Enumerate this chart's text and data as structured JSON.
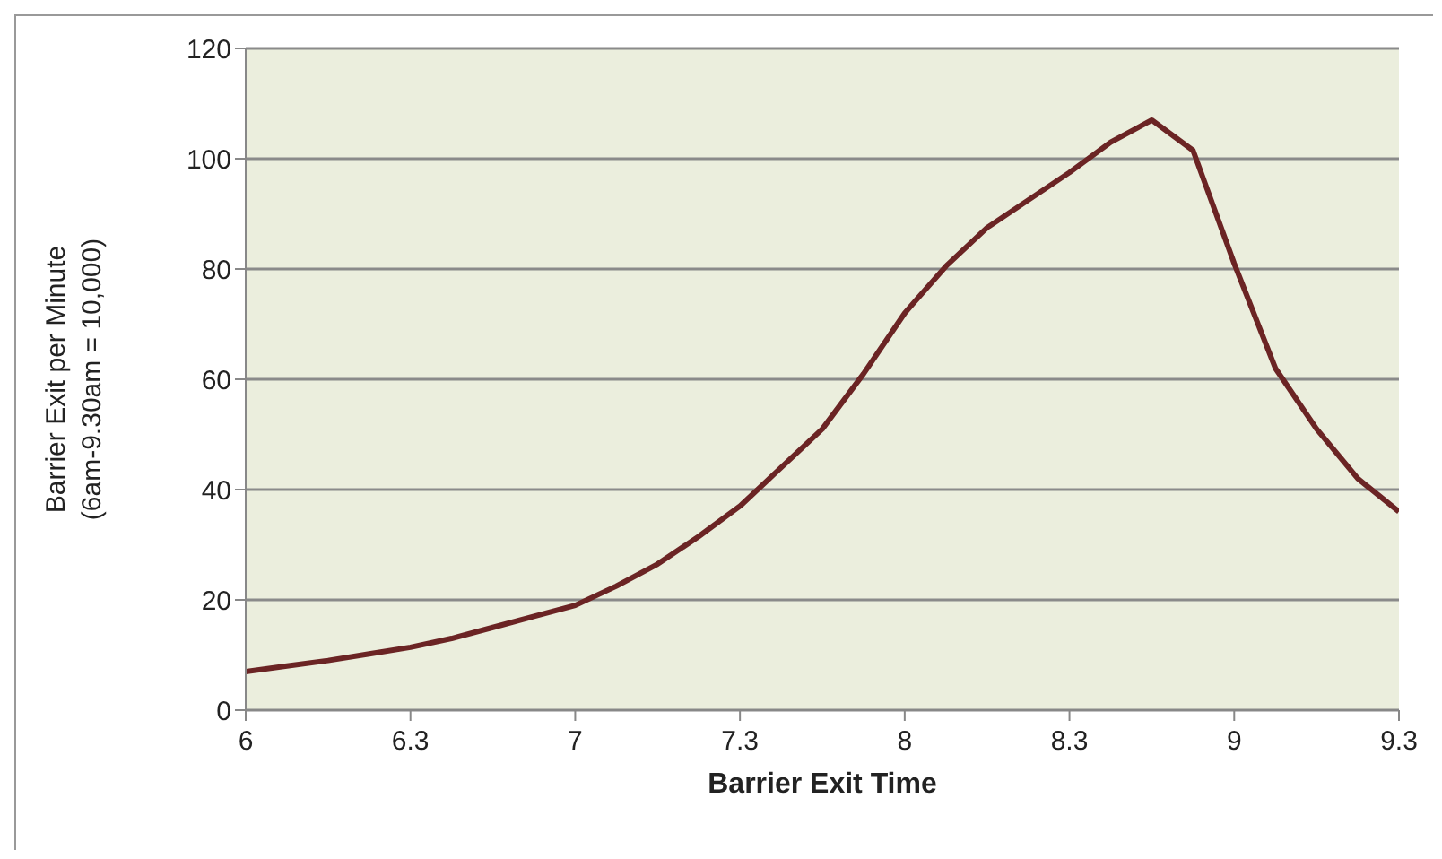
{
  "chart_data": {
    "type": "line",
    "xlabel": "Barrier Exit Time",
    "ylabel": "Barrier Exit per Minute\n(6am-9.30am = 10,000)",
    "categories": [
      "6",
      null,
      null,
      null,
      "6.3",
      null,
      null,
      null,
      "7",
      null,
      null,
      null,
      "7.3",
      null,
      null,
      null,
      "8",
      null,
      null,
      null,
      "8.3",
      null,
      null,
      null,
      "9",
      null,
      null,
      null,
      "9.3"
    ],
    "series": [
      {
        "color": "#6b2424",
        "values": [
          7,
          8,
          9,
          10.2,
          11.4,
          13,
          15,
          17,
          19,
          22.5,
          26.5,
          31.5,
          37,
          44,
          51,
          61,
          72,
          80.5,
          87.5,
          92.5,
          97.5,
          103,
          107,
          101.5,
          81,
          62,
          51,
          42,
          36
        ]
      }
    ],
    "ylim": [
      0,
      120
    ],
    "yticks": [
      0,
      20,
      40,
      60,
      80,
      100,
      120
    ],
    "grid": "y",
    "legend": false
  }
}
